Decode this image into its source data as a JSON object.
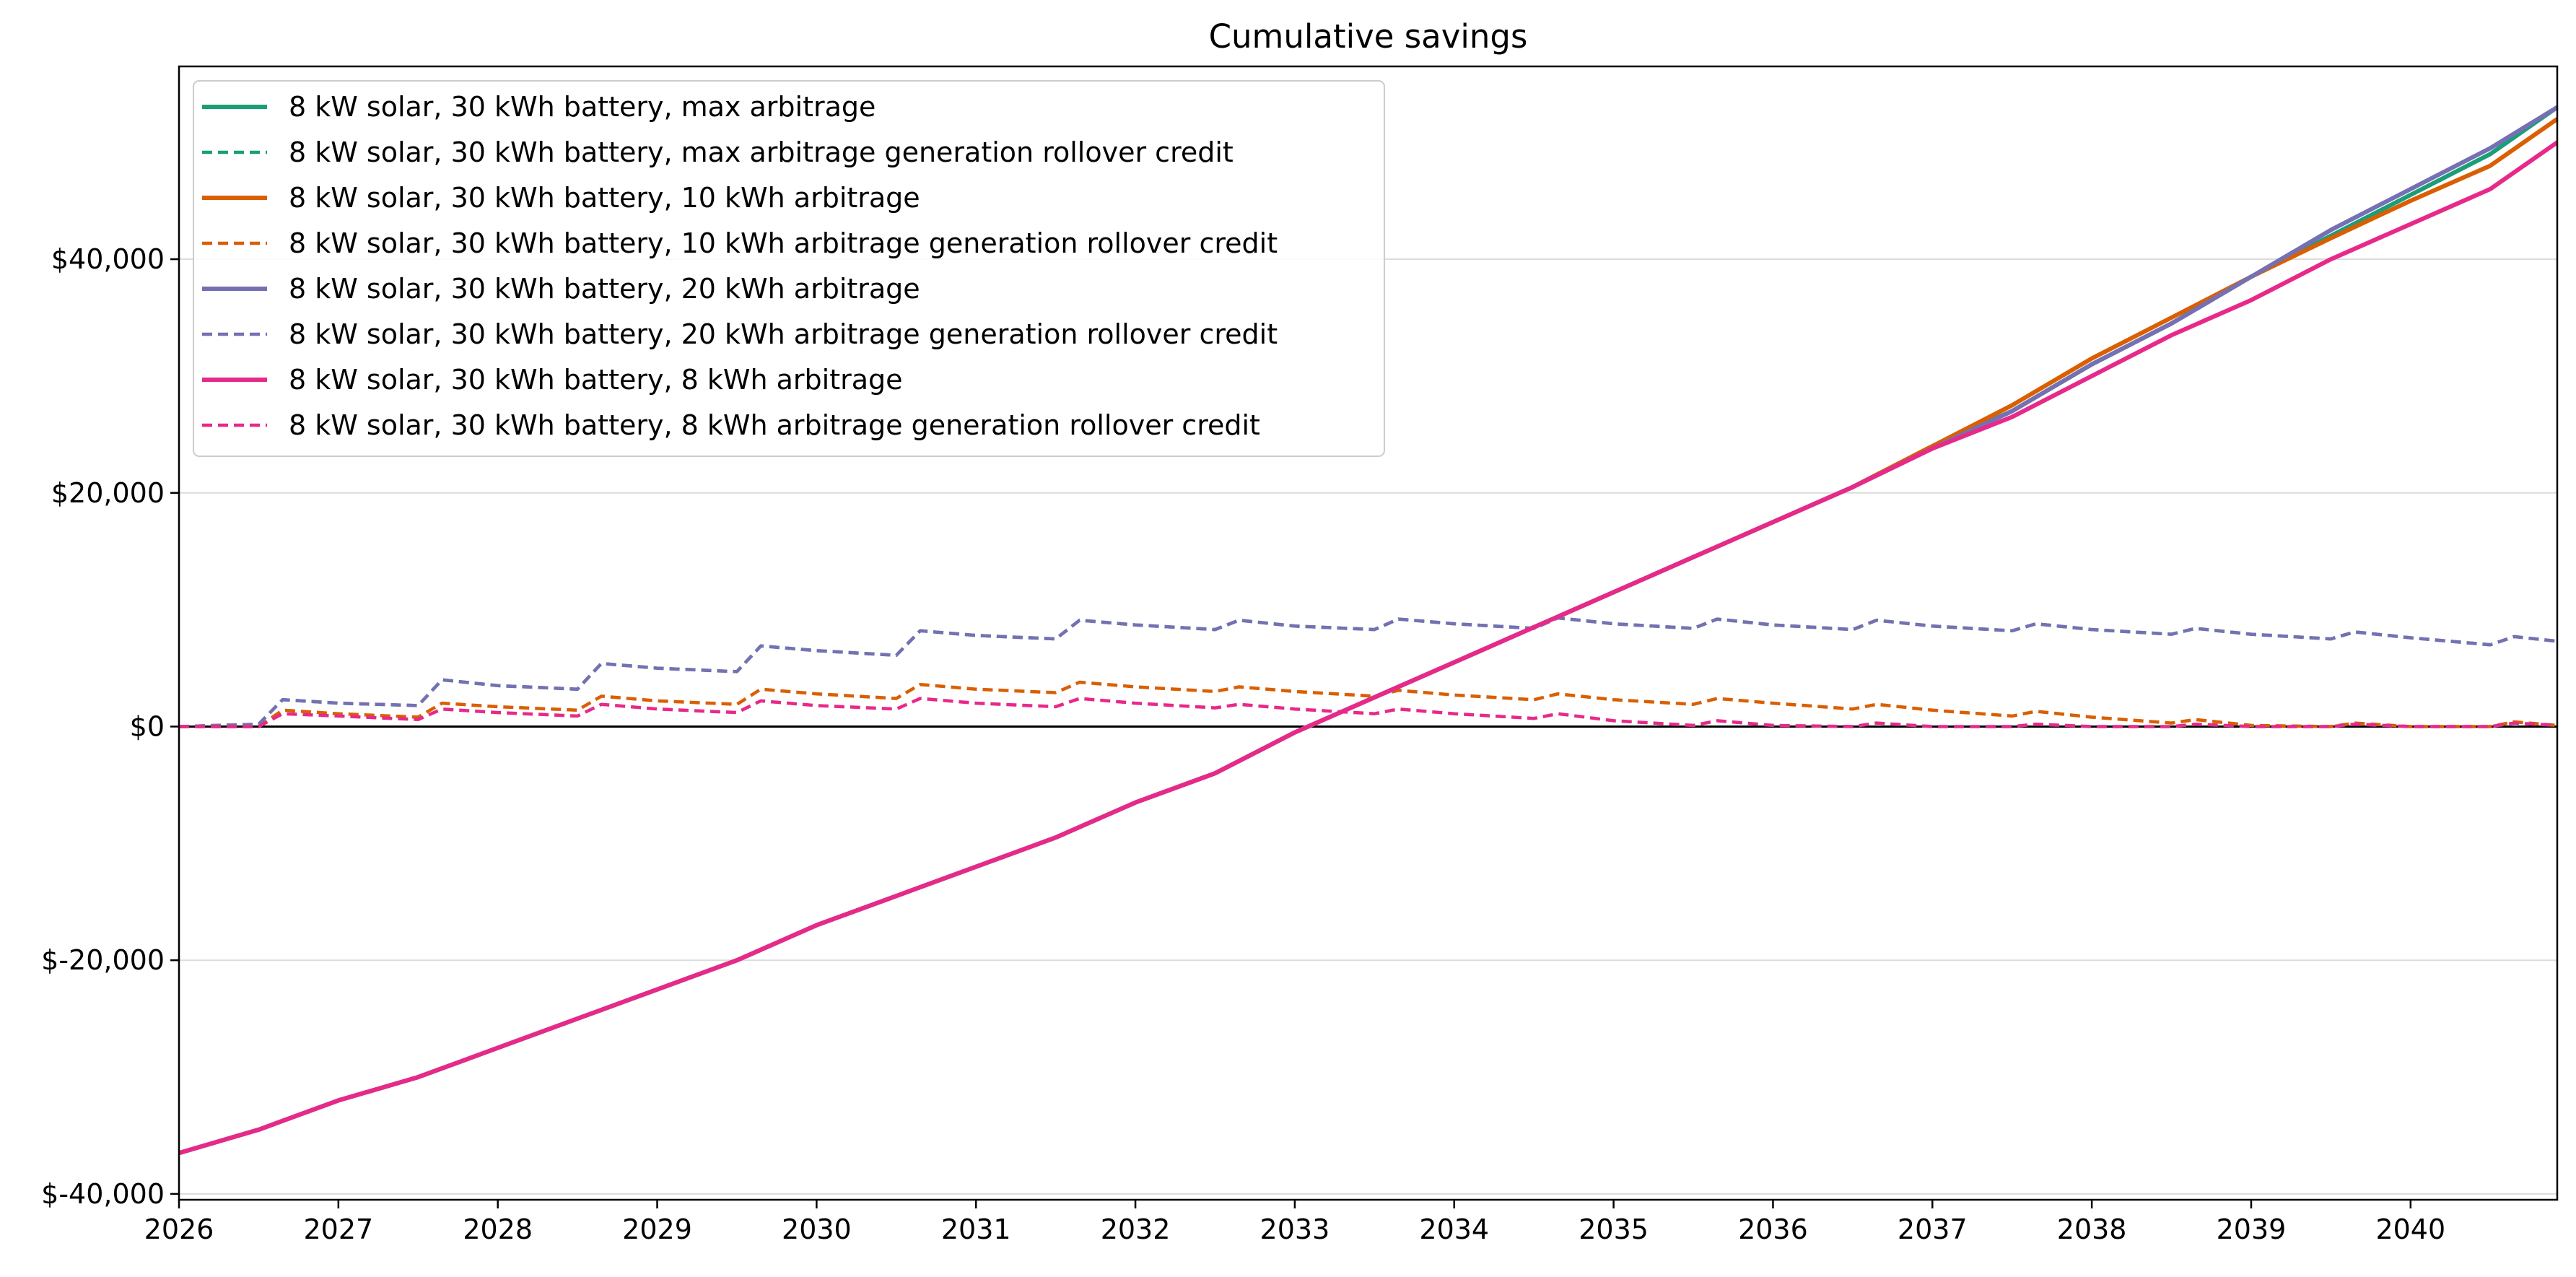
{
  "chart_data": {
    "type": "line",
    "title": "Cumulative savings",
    "xlabel": "",
    "ylabel": "",
    "x_unit": "year",
    "xlim": [
      2026.0,
      2040.92
    ],
    "ylim": [
      -40500,
      56500
    ],
    "x_ticks": [
      2026,
      2027,
      2028,
      2029,
      2030,
      2031,
      2032,
      2033,
      2034,
      2035,
      2036,
      2037,
      2038,
      2039,
      2040
    ],
    "x_tick_labels": [
      "2026",
      "2027",
      "2028",
      "2029",
      "2030",
      "2031",
      "2032",
      "2033",
      "2034",
      "2035",
      "2036",
      "2037",
      "2038",
      "2039",
      "2040"
    ],
    "y_ticks": [
      -40000,
      -20000,
      0,
      20000,
      40000
    ],
    "y_tick_labels": [
      "$-40,000",
      "$-20,000",
      "$0",
      "$20,000",
      "$40,000"
    ],
    "grid": "horizontal",
    "zero_line": true,
    "legend_position": "upper-left",
    "series": [
      {
        "name": "8 kW solar, 30 kWh battery, max arbitrage",
        "color": "#1b9e77",
        "style": "solid",
        "x": [
          2026.0,
          2026.5,
          2027.0,
          2027.5,
          2028.0,
          2028.5,
          2029.0,
          2029.5,
          2030.0,
          2030.5,
          2031.0,
          2031.5,
          2032.0,
          2032.5,
          2033.0,
          2033.5,
          2034.0,
          2034.5,
          2035.0,
          2035.5,
          2036.0,
          2036.5,
          2037.0,
          2037.5,
          2038.0,
          2038.5,
          2039.0,
          2039.5,
          2040.0,
          2040.5,
          2040.92
        ],
        "y": [
          -36500,
          -34500,
          -32000,
          -30000,
          -27500,
          -25000,
          -22500,
          -20000,
          -17000,
          -14500,
          -12000,
          -9500,
          -6500,
          -4000,
          -500,
          2500,
          5500,
          8500,
          11500,
          14500,
          17500,
          20500,
          24000,
          27000,
          31000,
          34500,
          38500,
          42000,
          45500,
          49000,
          53000
        ]
      },
      {
        "name": "8 kW solar, 30 kWh battery, max arbitrage generation rollover credit",
        "color": "#1b9e77",
        "style": "dashed",
        "x": [
          2026.0,
          2026.5,
          2026.65,
          2027.0,
          2027.5,
          2027.65,
          2028.0,
          2028.5,
          2028.65,
          2029.0,
          2029.5,
          2029.65,
          2030.0,
          2030.5,
          2030.65,
          2031.0,
          2031.5,
          2031.65,
          2032.0,
          2032.5,
          2032.65,
          2033.0,
          2033.5,
          2033.65,
          2034.0,
          2034.5,
          2034.65,
          2035.0,
          2035.5,
          2035.65,
          2036.0,
          2036.5,
          2036.65,
          2037.0,
          2037.5,
          2037.65,
          2038.0,
          2038.5,
          2038.65,
          2039.0,
          2039.5,
          2039.65,
          2040.0,
          2040.5,
          2040.65,
          2040.92
        ],
        "y": [
          0,
          200,
          2300,
          2000,
          1800,
          4000,
          3500,
          3200,
          5400,
          5000,
          4700,
          6900,
          6500,
          6100,
          8200,
          7800,
          7500,
          9100,
          8700,
          8300,
          9100,
          8600,
          8300,
          9200,
          8800,
          8400,
          9300,
          8800,
          8400,
          9200,
          8700,
          8300,
          9100,
          8600,
          8200,
          8800,
          8300,
          7900,
          8400,
          7900,
          7500,
          8100,
          7600,
          7000,
          7700,
          7300
        ]
      },
      {
        "name": "8 kW solar, 30 kWh battery, 10 kWh arbitrage",
        "color": "#d95f02",
        "style": "solid",
        "x": [
          2026.0,
          2026.5,
          2027.0,
          2027.5,
          2028.0,
          2028.5,
          2029.0,
          2029.5,
          2030.0,
          2030.5,
          2031.0,
          2031.5,
          2032.0,
          2032.5,
          2033.0,
          2033.5,
          2034.0,
          2034.5,
          2035.0,
          2035.5,
          2036.0,
          2036.5,
          2037.0,
          2037.5,
          2038.0,
          2038.5,
          2039.0,
          2039.5,
          2040.0,
          2040.5,
          2040.92
        ],
        "y": [
          -36500,
          -34500,
          -32000,
          -30000,
          -27500,
          -25000,
          -22500,
          -20000,
          -17000,
          -14500,
          -12000,
          -9500,
          -6500,
          -4000,
          -500,
          2500,
          5500,
          8500,
          11500,
          14500,
          17500,
          20500,
          24000,
          27500,
          31500,
          35000,
          38500,
          41800,
          45000,
          48000,
          52000
        ]
      },
      {
        "name": "8 kW solar, 30 kWh battery, 10 kWh arbitrage generation rollover credit",
        "color": "#d95f02",
        "style": "dashed",
        "x": [
          2026.0,
          2026.5,
          2026.65,
          2027.0,
          2027.5,
          2027.65,
          2028.0,
          2028.5,
          2028.65,
          2029.0,
          2029.5,
          2029.65,
          2030.0,
          2030.5,
          2030.65,
          2031.0,
          2031.5,
          2031.65,
          2032.0,
          2032.5,
          2032.65,
          2033.0,
          2033.5,
          2033.65,
          2034.0,
          2034.5,
          2034.65,
          2035.0,
          2035.5,
          2035.65,
          2036.0,
          2036.5,
          2036.65,
          2037.0,
          2037.5,
          2037.65,
          2038.0,
          2038.5,
          2038.65,
          2039.0,
          2039.5,
          2039.65,
          2040.0,
          2040.5,
          2040.65,
          2040.92
        ],
        "y": [
          0,
          0,
          1400,
          1100,
          800,
          2000,
          1700,
          1400,
          2600,
          2200,
          1900,
          3200,
          2800,
          2400,
          3600,
          3200,
          2900,
          3800,
          3400,
          3000,
          3400,
          3000,
          2600,
          3100,
          2700,
          2300,
          2800,
          2300,
          1900,
          2400,
          2000,
          1500,
          1900,
          1400,
          900,
          1300,
          800,
          300,
          600,
          100,
          0,
          300,
          0,
          0,
          400,
          100
        ]
      },
      {
        "name": "8 kW solar, 30 kWh battery, 20 kWh arbitrage",
        "color": "#7570b3",
        "style": "solid",
        "x": [
          2026.0,
          2026.5,
          2027.0,
          2027.5,
          2028.0,
          2028.5,
          2029.0,
          2029.5,
          2030.0,
          2030.5,
          2031.0,
          2031.5,
          2032.0,
          2032.5,
          2033.0,
          2033.5,
          2034.0,
          2034.5,
          2035.0,
          2035.5,
          2036.0,
          2036.5,
          2037.0,
          2037.5,
          2038.0,
          2038.5,
          2039.0,
          2039.5,
          2040.0,
          2040.5,
          2040.92
        ],
        "y": [
          -36500,
          -34500,
          -32000,
          -30000,
          -27500,
          -25000,
          -22500,
          -20000,
          -17000,
          -14500,
          -12000,
          -9500,
          -6500,
          -4000,
          -500,
          2500,
          5500,
          8500,
          11500,
          14500,
          17500,
          20500,
          23800,
          27000,
          31000,
          34500,
          38500,
          42500,
          46000,
          49500,
          53000
        ]
      },
      {
        "name": "8 kW solar, 30 kWh battery, 20 kWh arbitrage generation rollover credit",
        "color": "#7570b3",
        "style": "dashed",
        "x": [
          2026.0,
          2026.5,
          2026.65,
          2027.0,
          2027.5,
          2027.65,
          2028.0,
          2028.5,
          2028.65,
          2029.0,
          2029.5,
          2029.65,
          2030.0,
          2030.5,
          2030.65,
          2031.0,
          2031.5,
          2031.65,
          2032.0,
          2032.5,
          2032.65,
          2033.0,
          2033.5,
          2033.65,
          2034.0,
          2034.5,
          2034.65,
          2035.0,
          2035.5,
          2035.65,
          2036.0,
          2036.5,
          2036.65,
          2037.0,
          2037.5,
          2037.65,
          2038.0,
          2038.5,
          2038.65,
          2039.0,
          2039.5,
          2039.65,
          2040.0,
          2040.5,
          2040.65,
          2040.92
        ],
        "y": [
          0,
          200,
          2300,
          2000,
          1800,
          4000,
          3500,
          3200,
          5400,
          5000,
          4700,
          6900,
          6500,
          6100,
          8200,
          7800,
          7500,
          9100,
          8700,
          8300,
          9100,
          8600,
          8300,
          9200,
          8800,
          8400,
          9300,
          8800,
          8400,
          9200,
          8700,
          8300,
          9100,
          8600,
          8200,
          8800,
          8300,
          7900,
          8400,
          7900,
          7500,
          8100,
          7600,
          7000,
          7700,
          7300
        ]
      },
      {
        "name": "8 kW solar, 30 kWh battery, 8 kWh arbitrage",
        "color": "#e7298a",
        "style": "solid",
        "x": [
          2026.0,
          2026.5,
          2027.0,
          2027.5,
          2028.0,
          2028.5,
          2029.0,
          2029.5,
          2030.0,
          2030.5,
          2031.0,
          2031.5,
          2032.0,
          2032.5,
          2033.0,
          2033.5,
          2034.0,
          2034.5,
          2035.0,
          2035.5,
          2036.0,
          2036.5,
          2037.0,
          2037.5,
          2038.0,
          2038.5,
          2039.0,
          2039.5,
          2040.0,
          2040.5,
          2040.92
        ],
        "y": [
          -36500,
          -34500,
          -32000,
          -30000,
          -27500,
          -25000,
          -22500,
          -20000,
          -17000,
          -14500,
          -12000,
          -9500,
          -6500,
          -4000,
          -500,
          2500,
          5500,
          8500,
          11500,
          14500,
          17500,
          20500,
          23800,
          26500,
          30000,
          33500,
          36500,
          40000,
          43000,
          46000,
          50000
        ]
      },
      {
        "name": "8 kW solar, 30 kWh battery, 8 kWh arbitrage generation rollover credit",
        "color": "#e7298a",
        "style": "dashed",
        "x": [
          2026.0,
          2026.5,
          2026.65,
          2027.0,
          2027.5,
          2027.65,
          2028.0,
          2028.5,
          2028.65,
          2029.0,
          2029.5,
          2029.65,
          2030.0,
          2030.5,
          2030.65,
          2031.0,
          2031.5,
          2031.65,
          2032.0,
          2032.5,
          2032.65,
          2033.0,
          2033.5,
          2033.65,
          2034.0,
          2034.5,
          2034.65,
          2035.0,
          2035.5,
          2035.65,
          2036.0,
          2036.5,
          2036.65,
          2037.0,
          2037.5,
          2037.65,
          2038.0,
          2038.5,
          2038.65,
          2039.0,
          2039.5,
          2039.65,
          2040.0,
          2040.5,
          2040.65,
          2040.92
        ],
        "y": [
          0,
          0,
          1100,
          900,
          600,
          1500,
          1200,
          900,
          1900,
          1500,
          1200,
          2200,
          1800,
          1500,
          2400,
          2000,
          1700,
          2400,
          2000,
          1600,
          1900,
          1500,
          1100,
          1500,
          1100,
          700,
          1100,
          500,
          100,
          500,
          100,
          0,
          300,
          0,
          0,
          200,
          0,
          0,
          200,
          0,
          0,
          200,
          0,
          0,
          300,
          100
        ]
      }
    ]
  }
}
